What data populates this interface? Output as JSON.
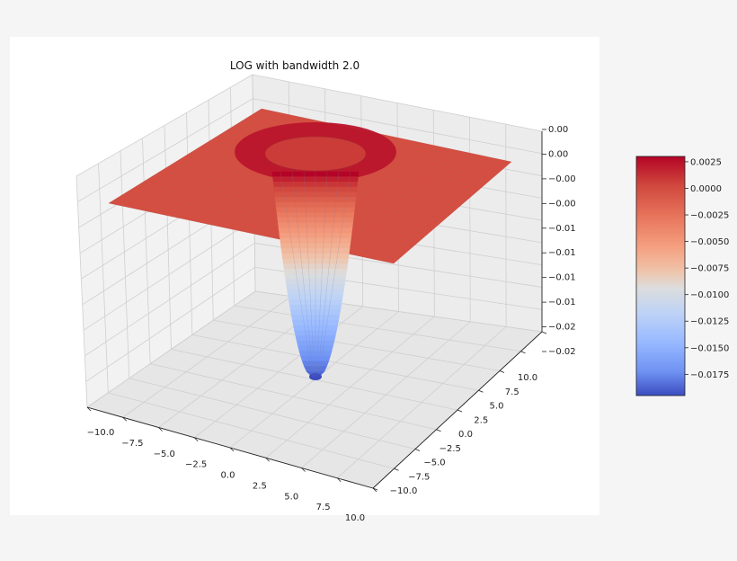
{
  "chart_data": {
    "type": "surface3d",
    "title": "LOG with bandwidth 2.0",
    "x_ticks": [
      "−10.0",
      "−7.5",
      "−5.0",
      "−2.5",
      "0.0",
      "2.5",
      "5.0",
      "7.5",
      "10.0"
    ],
    "y_ticks": [
      "−10.0",
      "−7.5",
      "−5.0",
      "−2.5",
      "0.0",
      "2.5",
      "5.0",
      "7.5",
      "10.0"
    ],
    "z_ticks": [
      "0.00",
      "0.00",
      "−0.00",
      "−0.00",
      "−0.01",
      "−0.01",
      "−0.01",
      "−0.01",
      "−0.02",
      "−0.02"
    ],
    "xlim": [
      -10,
      10
    ],
    "ylim": [
      -10,
      10
    ],
    "zlim": [
      -0.02,
      0.003
    ],
    "bandwidth": 2.0,
    "colormap": "coolwarm",
    "grid": true,
    "colorbar": {
      "ticks": [
        0.0025,
        0.0,
        -0.0025,
        -0.005,
        -0.0075,
        -0.01,
        -0.0125,
        -0.015,
        -0.0175
      ],
      "tick_labels": [
        "0.0025",
        "0.0000",
        "−0.0025",
        "−0.0050",
        "−0.0075",
        "−0.0100",
        "−0.0125",
        "−0.0150",
        "−0.0175"
      ],
      "range": [
        -0.0195,
        0.003
      ]
    }
  }
}
